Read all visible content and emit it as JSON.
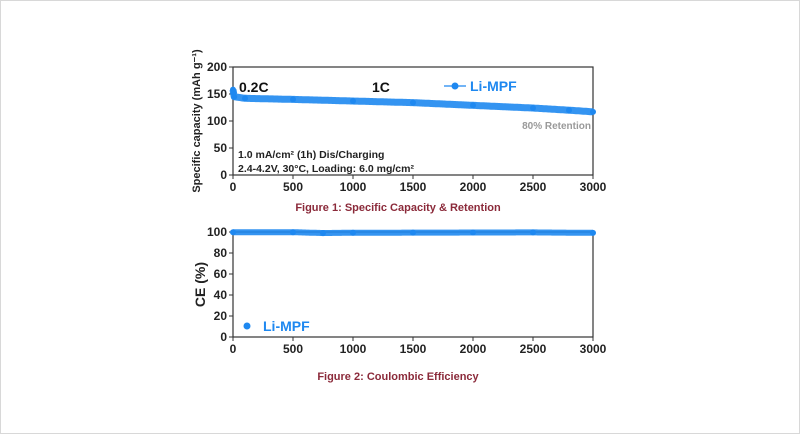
{
  "chart_data": [
    {
      "type": "scatter",
      "title": "",
      "caption": "Figure 1: Specific Capacity & Retention",
      "xlabel": "",
      "ylabel": "Specific capacity (mAh g⁻¹)",
      "xlim": [
        0,
        3000
      ],
      "ylim": [
        0,
        200
      ],
      "xticks": [
        0,
        500,
        1000,
        1500,
        2000,
        2500,
        3000
      ],
      "yticks": [
        0,
        50,
        100,
        150,
        200
      ],
      "grid": false,
      "legend": {
        "position": "top-right",
        "entries": [
          "Li-MPF"
        ]
      },
      "annotations": {
        "rate1": "0.2C",
        "rate2": "1C",
        "retention": "80% Retention",
        "condition1": "1.0 mA/cm² (1h) Dis/Charging",
        "condition2": "2.4-4.2V, 30°C, Loading: 6.0 mg/cm²"
      },
      "series": [
        {
          "name": "Li-MPF",
          "color": "#1e88f0",
          "x": [
            0,
            5,
            10,
            100,
            500,
            1000,
            1500,
            2000,
            2500,
            2800,
            3000
          ],
          "y": [
            158,
            152,
            145,
            142,
            140,
            137,
            134,
            129,
            124,
            120,
            117
          ]
        }
      ]
    },
    {
      "type": "scatter",
      "title": "",
      "caption": "Figure 2: Coulombic Efficiency",
      "xlabel": "",
      "ylabel": "CE (%)",
      "xlim": [
        0,
        3000
      ],
      "ylim": [
        0,
        100
      ],
      "xticks": [
        0,
        500,
        1000,
        1500,
        2000,
        2500,
        3000
      ],
      "yticks": [
        0,
        20,
        40,
        60,
        80,
        100
      ],
      "grid": false,
      "legend": {
        "position": "bottom-left",
        "entries": [
          "Li-MPF"
        ]
      },
      "series": [
        {
          "name": "Li-MPF",
          "color": "#1e88f0",
          "x": [
            0,
            500,
            750,
            1000,
            1500,
            2000,
            2500,
            3000
          ],
          "y": [
            99.8,
            99.8,
            99.0,
            99.3,
            99.4,
            99.5,
            99.6,
            99.2
          ]
        }
      ]
    }
  ]
}
